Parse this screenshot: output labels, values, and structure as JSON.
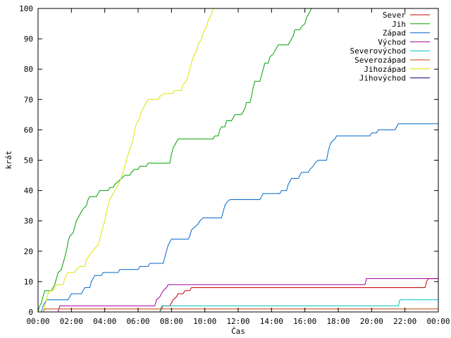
{
  "chart_data": {
    "type": "line",
    "title": "",
    "xlabel": "Čas",
    "ylabel": "krát",
    "xlim": [
      0,
      24
    ],
    "ylim": [
      0,
      100
    ],
    "x_ticks": [
      0,
      2,
      4,
      6,
      8,
      10,
      12,
      14,
      16,
      18,
      20,
      22,
      24
    ],
    "x_tick_labels": [
      "00:00",
      "02:00",
      "04:00",
      "06:00",
      "08:00",
      "10:00",
      "12:00",
      "14:00",
      "16:00",
      "18:00",
      "20:00",
      "22:00",
      "00:00"
    ],
    "y_ticks": [
      0,
      10,
      20,
      30,
      40,
      50,
      60,
      70,
      80,
      90,
      100
    ],
    "y_tick_labels": [
      "0",
      "10",
      "20",
      "30",
      "40",
      "50",
      "60",
      "70",
      "80",
      "90",
      "100"
    ],
    "grid": false,
    "legend_position": "top-right",
    "series": [
      {
        "name": "Sever",
        "color": "#cc0000",
        "points": [
          [
            0,
            0
          ],
          [
            7.3,
            0
          ],
          [
            7.4,
            1
          ],
          [
            7.5,
            2
          ],
          [
            7.9,
            2
          ],
          [
            8.0,
            3
          ],
          [
            8.1,
            4
          ],
          [
            8.3,
            5
          ],
          [
            8.4,
            6
          ],
          [
            8.7,
            6
          ],
          [
            8.8,
            7
          ],
          [
            9.1,
            7
          ],
          [
            9.2,
            8
          ],
          [
            23.2,
            8
          ],
          [
            23.3,
            10
          ],
          [
            23.4,
            11
          ],
          [
            24,
            11
          ]
        ]
      },
      {
        "name": "Jih",
        "color": "#00a000",
        "points": [
          [
            0,
            0
          ],
          [
            0.1,
            2
          ],
          [
            0.2,
            3
          ],
          [
            0.3,
            5
          ],
          [
            0.4,
            7
          ],
          [
            0.8,
            7
          ],
          [
            0.9,
            8
          ],
          [
            1.0,
            9
          ],
          [
            1.1,
            11
          ],
          [
            1.2,
            13
          ],
          [
            1.4,
            14
          ],
          [
            1.5,
            16
          ],
          [
            1.6,
            18
          ],
          [
            1.7,
            20
          ],
          [
            1.8,
            23
          ],
          [
            1.9,
            25
          ],
          [
            2.1,
            26
          ],
          [
            2.2,
            28
          ],
          [
            2.3,
            30
          ],
          [
            2.4,
            31
          ],
          [
            2.6,
            33
          ],
          [
            2.7,
            34
          ],
          [
            2.9,
            35
          ],
          [
            3.0,
            37
          ],
          [
            3.1,
            38
          ],
          [
            3.5,
            38
          ],
          [
            3.6,
            39
          ],
          [
            3.7,
            40
          ],
          [
            4.2,
            40
          ],
          [
            4.3,
            41
          ],
          [
            4.5,
            41
          ],
          [
            4.6,
            42
          ],
          [
            4.8,
            43
          ],
          [
            5.0,
            44
          ],
          [
            5.2,
            45
          ],
          [
            5.5,
            45
          ],
          [
            5.6,
            46
          ],
          [
            5.8,
            47
          ],
          [
            6.0,
            47
          ],
          [
            6.1,
            48
          ],
          [
            6.5,
            48
          ],
          [
            6.6,
            49
          ],
          [
            7.9,
            49
          ],
          [
            8.0,
            52
          ],
          [
            8.1,
            54
          ],
          [
            8.2,
            55
          ],
          [
            8.3,
            56
          ],
          [
            8.4,
            57
          ],
          [
            10.5,
            57
          ],
          [
            10.6,
            58
          ],
          [
            10.8,
            58
          ],
          [
            10.9,
            60
          ],
          [
            11.0,
            61
          ],
          [
            11.2,
            61
          ],
          [
            11.3,
            63
          ],
          [
            11.6,
            63
          ],
          [
            11.7,
            64
          ],
          [
            11.8,
            65
          ],
          [
            12.2,
            65
          ],
          [
            12.3,
            66
          ],
          [
            12.4,
            67
          ],
          [
            12.5,
            69
          ],
          [
            12.7,
            69
          ],
          [
            12.8,
            71
          ],
          [
            12.9,
            74
          ],
          [
            13.0,
            76
          ],
          [
            13.3,
            76
          ],
          [
            13.4,
            78
          ],
          [
            13.5,
            80
          ],
          [
            13.6,
            82
          ],
          [
            13.8,
            82
          ],
          [
            13.9,
            84
          ],
          [
            14.1,
            85
          ],
          [
            14.3,
            87
          ],
          [
            14.4,
            88
          ],
          [
            15.0,
            88
          ],
          [
            15.1,
            89
          ],
          [
            15.2,
            90
          ],
          [
            15.3,
            91
          ],
          [
            15.4,
            93
          ],
          [
            15.7,
            93
          ],
          [
            15.8,
            94
          ],
          [
            16.0,
            95
          ],
          [
            16.1,
            97
          ],
          [
            16.2,
            98
          ],
          [
            16.3,
            99
          ],
          [
            16.4,
            100
          ]
        ]
      },
      {
        "name": "Západ",
        "color": "#0066cc",
        "points": [
          [
            0,
            0
          ],
          [
            0.2,
            0
          ],
          [
            0.3,
            2
          ],
          [
            0.4,
            3
          ],
          [
            0.5,
            4
          ],
          [
            1.8,
            4
          ],
          [
            1.9,
            5
          ],
          [
            2.0,
            6
          ],
          [
            2.6,
            6
          ],
          [
            2.7,
            7
          ],
          [
            2.8,
            8
          ],
          [
            3.1,
            8
          ],
          [
            3.2,
            10
          ],
          [
            3.3,
            11
          ],
          [
            3.4,
            12
          ],
          [
            3.8,
            12
          ],
          [
            3.9,
            13
          ],
          [
            4.8,
            13
          ],
          [
            4.9,
            14
          ],
          [
            6.0,
            14
          ],
          [
            6.1,
            15
          ],
          [
            6.6,
            15
          ],
          [
            6.7,
            16
          ],
          [
            7.5,
            16
          ],
          [
            7.6,
            18
          ],
          [
            7.7,
            20
          ],
          [
            7.8,
            22
          ],
          [
            7.9,
            23
          ],
          [
            8.0,
            24
          ],
          [
            9.0,
            24
          ],
          [
            9.1,
            25
          ],
          [
            9.2,
            27
          ],
          [
            9.4,
            28
          ],
          [
            9.6,
            29
          ],
          [
            9.7,
            30
          ],
          [
            9.9,
            31
          ],
          [
            11.0,
            31
          ],
          [
            11.1,
            33
          ],
          [
            11.2,
            35
          ],
          [
            11.3,
            36
          ],
          [
            11.5,
            37
          ],
          [
            13.3,
            37
          ],
          [
            13.4,
            38
          ],
          [
            13.5,
            39
          ],
          [
            14.5,
            39
          ],
          [
            14.6,
            40
          ],
          [
            14.9,
            40
          ],
          [
            15.0,
            42
          ],
          [
            15.1,
            43
          ],
          [
            15.2,
            44
          ],
          [
            15.6,
            44
          ],
          [
            15.7,
            45
          ],
          [
            15.8,
            46
          ],
          [
            16.2,
            46
          ],
          [
            16.3,
            47
          ],
          [
            16.5,
            48
          ],
          [
            16.6,
            49
          ],
          [
            16.8,
            50
          ],
          [
            17.3,
            50
          ],
          [
            17.4,
            53
          ],
          [
            17.5,
            55
          ],
          [
            17.6,
            56
          ],
          [
            17.8,
            57
          ],
          [
            17.9,
            58
          ],
          [
            19.9,
            58
          ],
          [
            20.0,
            59
          ],
          [
            20.3,
            59
          ],
          [
            20.4,
            60
          ],
          [
            21.4,
            60
          ],
          [
            21.5,
            61
          ],
          [
            21.6,
            62
          ],
          [
            24,
            62
          ]
        ]
      },
      {
        "name": "Východ",
        "color": "#a000a0",
        "points": [
          [
            0,
            0
          ],
          [
            1.2,
            0
          ],
          [
            1.3,
            2
          ],
          [
            7.0,
            2
          ],
          [
            7.1,
            4
          ],
          [
            7.3,
            5
          ],
          [
            7.5,
            7
          ],
          [
            7.7,
            8
          ],
          [
            7.8,
            9
          ],
          [
            19.6,
            9
          ],
          [
            19.7,
            11
          ],
          [
            24,
            11
          ]
        ]
      },
      {
        "name": "Severovýchod",
        "color": "#00c0c0",
        "points": [
          [
            0,
            0
          ],
          [
            7.3,
            0
          ],
          [
            7.4,
            2
          ],
          [
            21.6,
            2
          ],
          [
            21.7,
            4
          ],
          [
            24,
            4
          ]
        ]
      },
      {
        "name": "Severozápad",
        "color": "#c04000",
        "points": [
          [
            0,
            0
          ],
          [
            0.3,
            0
          ],
          [
            0.4,
            1
          ],
          [
            24,
            1
          ]
        ]
      },
      {
        "name": "Jihozápad",
        "color": "#e0e000",
        "points": [
          [
            0,
            0
          ],
          [
            0.3,
            0
          ],
          [
            0.4,
            2
          ],
          [
            0.5,
            4
          ],
          [
            0.6,
            6
          ],
          [
            0.7,
            7
          ],
          [
            0.9,
            7
          ],
          [
            1.0,
            8
          ],
          [
            1.1,
            9
          ],
          [
            1.5,
            9
          ],
          [
            1.6,
            11
          ],
          [
            1.8,
            13
          ],
          [
            2.2,
            13
          ],
          [
            2.3,
            14
          ],
          [
            2.5,
            15
          ],
          [
            2.8,
            15
          ],
          [
            2.9,
            17
          ],
          [
            3.1,
            19
          ],
          [
            3.3,
            20
          ],
          [
            3.4,
            21
          ],
          [
            3.6,
            22
          ],
          [
            3.7,
            24
          ],
          [
            3.8,
            26
          ],
          [
            3.9,
            28
          ],
          [
            4.0,
            30
          ],
          [
            4.1,
            33
          ],
          [
            4.2,
            35
          ],
          [
            4.3,
            37
          ],
          [
            4.5,
            39
          ],
          [
            4.7,
            41
          ],
          [
            4.9,
            43
          ],
          [
            5.1,
            46
          ],
          [
            5.2,
            48
          ],
          [
            5.3,
            50
          ],
          [
            5.4,
            52
          ],
          [
            5.6,
            55
          ],
          [
            5.7,
            57
          ],
          [
            5.8,
            60
          ],
          [
            5.9,
            62
          ],
          [
            6.1,
            64
          ],
          [
            6.2,
            66
          ],
          [
            6.4,
            68
          ],
          [
            6.5,
            69
          ],
          [
            6.6,
            70
          ],
          [
            7.2,
            70
          ],
          [
            7.3,
            71
          ],
          [
            7.6,
            72
          ],
          [
            8.1,
            72
          ],
          [
            8.2,
            73
          ],
          [
            8.6,
            73
          ],
          [
            8.7,
            75
          ],
          [
            8.9,
            76
          ],
          [
            9.0,
            78
          ],
          [
            9.1,
            80
          ],
          [
            9.2,
            82
          ],
          [
            9.3,
            84
          ],
          [
            9.5,
            86
          ],
          [
            9.6,
            88
          ],
          [
            9.8,
            90
          ],
          [
            9.9,
            92
          ],
          [
            10.1,
            94
          ],
          [
            10.2,
            96
          ],
          [
            10.4,
            98
          ],
          [
            10.5,
            100
          ]
        ]
      },
      {
        "name": "Jihovýchod",
        "color": "#000080",
        "points": [
          [
            0,
            0
          ],
          [
            24,
            0
          ]
        ]
      }
    ]
  }
}
